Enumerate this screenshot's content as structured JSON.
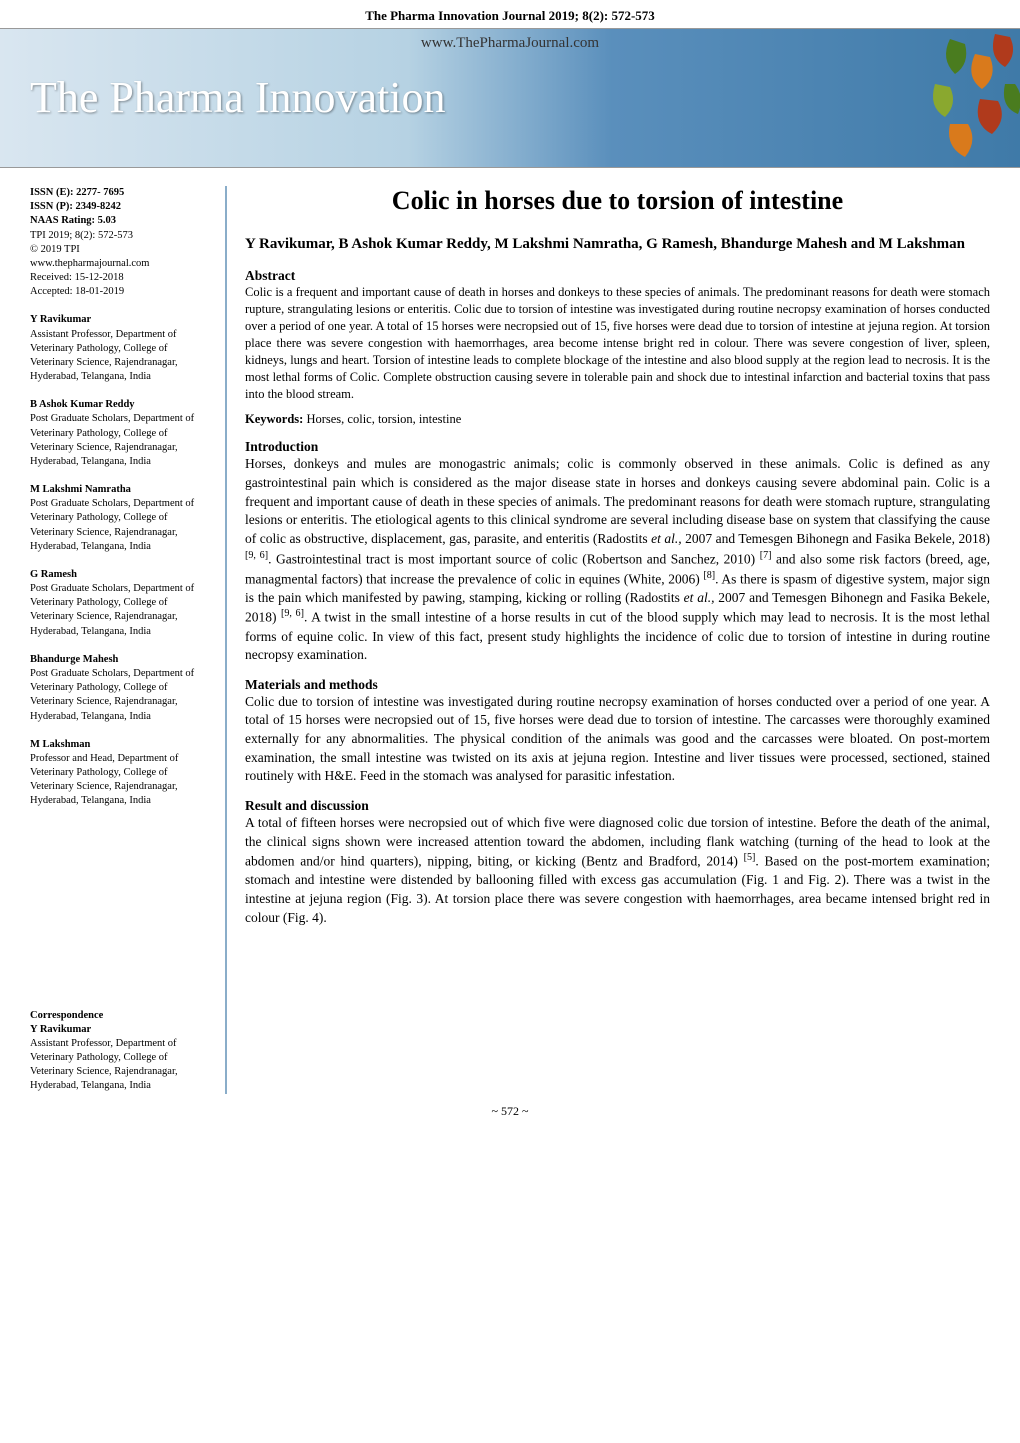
{
  "colors": {
    "banner_gradient_start": "#d9e6f0",
    "banner_gradient_mid1": "#b6d2e3",
    "banner_gradient_mid2": "#5a8fbc",
    "banner_gradient_end": "#3f7aa8",
    "banner_title_color": "#ffffff",
    "sidebar_border": "#8aadc9",
    "text_color": "#000000",
    "leaf_green": "#4a7c1f",
    "leaf_red": "#b03a1c",
    "leaf_orange": "#d97a1c"
  },
  "typography": {
    "body_font": "Times New Roman",
    "banner_font": "Georgia",
    "title_fontsize": 26,
    "authors_fontsize": 15,
    "section_heading_fontsize": 13.5,
    "body_fontsize": 13.5,
    "abstract_fontsize": 12.5,
    "sidebar_fontsize": 10.5,
    "banner_title_fontsize": 44
  },
  "header": {
    "journal_line": "The Pharma Innovation Journal 2019; 8(2): 572-573",
    "url": "www.ThePharmaJournal.com",
    "banner_title": "The Pharma Innovation"
  },
  "sidebar": {
    "meta": {
      "issn_e": "ISSN (E): 2277- 7695",
      "issn_p": "ISSN (P): 2349-8242",
      "naas": "NAAS Rating: 5.03",
      "tpi": "TPI 2019; 8(2): 572-573",
      "copyright": "© 2019 TPI",
      "website": "www.thepharmajournal.com",
      "received": "Received: 15-12-2018",
      "accepted": "Accepted: 18-01-2019"
    },
    "authors": [
      {
        "name": "Y Ravikumar",
        "affiliation": "Assistant Professor, Department of Veterinary Pathology, College of Veterinary Science, Rajendranagar, Hyderabad, Telangana, India"
      },
      {
        "name": "B Ashok Kumar Reddy",
        "affiliation": "Post Graduate Scholars, Department of Veterinary Pathology, College of Veterinary Science, Rajendranagar, Hyderabad, Telangana, India"
      },
      {
        "name": "M Lakshmi Namratha",
        "affiliation": "Post Graduate Scholars, Department of Veterinary Pathology, College of Veterinary Science, Rajendranagar, Hyderabad, Telangana, India"
      },
      {
        "name": "G Ramesh",
        "affiliation": "Post Graduate Scholars, Department of Veterinary Pathology, College of Veterinary Science, Rajendranagar, Hyderabad, Telangana, India"
      },
      {
        "name": "Bhandurge Mahesh",
        "affiliation": "Post Graduate Scholars, Department of Veterinary Pathology, College of Veterinary Science, Rajendranagar, Hyderabad, Telangana, India"
      },
      {
        "name": "M Lakshman",
        "affiliation": "Professor and Head, Department of Veterinary Pathology, College of Veterinary Science, Rajendranagar, Hyderabad, Telangana, India"
      }
    ],
    "correspondence": {
      "heading": "Correspondence",
      "name": "Y Ravikumar",
      "affiliation": "Assistant Professor, Department of Veterinary Pathology, College of Veterinary Science, Rajendranagar, Hyderabad, Telangana, India"
    }
  },
  "article": {
    "title": "Colic in horses due to torsion of intestine",
    "authors_line": "Y Ravikumar, B Ashok Kumar Reddy, M Lakshmi Namratha, G Ramesh, Bhandurge Mahesh and M Lakshman",
    "abstract_heading": "Abstract",
    "abstract": "Colic is a frequent and important cause of death in horses and donkeys to these species of animals. The predominant reasons for death were stomach rupture, strangulating lesions or enteritis. Colic due to torsion of intestine was investigated during routine necropsy examination of horses conducted over a period of one year. A total of 15 horses were necropsied out of 15, five horses were dead due to torsion of intestine at jejuna region. At torsion place there was severe congestion with haemorrhages, area become intense bright red in colour. There was severe congestion of liver, spleen, kidneys, lungs and heart. Torsion of intestine leads to complete blockage of the intestine and also blood supply at the region lead to necrosis. It is the most lethal forms of Colic. Complete obstruction causing severe in tolerable pain and shock due to intestinal infarction and bacterial toxins that pass into the blood stream.",
    "keywords_label": "Keywords:",
    "keywords": "Horses, colic, torsion, intestine",
    "sections": [
      {
        "heading": "Introduction",
        "text": "Horses, donkeys and mules are monogastric animals; colic is commonly observed in these animals. Colic is defined as any gastrointestinal pain which is considered as the major disease state in horses and donkeys causing severe abdominal pain. Colic is a frequent and important cause of death in these species of animals. The predominant reasons for death were stomach rupture, strangulating lesions or enteritis. The etiological agents to this clinical syndrome are several including disease base on system that classifying the cause of colic as obstructive, displacement, gas, parasite, and enteritis (Radostits et al., 2007 and Temesgen Bihonegn and Fasika Bekele, 2018) [9, 6]. Gastrointestinal tract is most important source of colic (Robertson and Sanchez, 2010) [7] and also some risk factors (breed, age, managmental factors) that increase the prevalence of colic in equines (White, 2006) [8]. As there is spasm of digestive system, major sign is the pain which manifested by pawing, stamping, kicking or rolling (Radostits et al., 2007 and Temesgen Bihonegn and Fasika Bekele, 2018) [9, 6]. A twist in the small intestine of a horse results in cut of the blood supply which may lead to necrosis. It is the most lethal forms of equine colic. In view of this fact, present study highlights the incidence of colic due to torsion of intestine in during routine necropsy examination."
      },
      {
        "heading": "Materials and methods",
        "text": "Colic due to torsion of intestine was investigated during routine necropsy examination of horses conducted over a period of one year. A total of 15 horses were necropsied out of 15, five horses were dead due to torsion of intestine. The carcasses were thoroughly examined externally for any abnormalities. The physical condition of the animals was good and the carcasses were bloated. On post-mortem examination, the small intestine was twisted on its axis at jejuna region. Intestine and liver tissues were processed, sectioned, stained routinely with H&E. Feed in the stomach was analysed for parasitic infestation."
      },
      {
        "heading": "Result and discussion",
        "text": "A total of fifteen horses were necropsied out of which five were diagnosed colic due torsion of intestine. Before the death of the animal, the clinical signs shown were increased attention toward the abdomen, including flank watching (turning of the head to look at the abdomen and/or hind quarters), nipping, biting, or kicking (Bentz and Bradford, 2014) [5]. Based on the post-mortem examination; stomach and intestine were distended by ballooning filled with excess gas accumulation (Fig. 1 and Fig. 2). There was a twist in the intestine at jejuna region (Fig. 3). At torsion place there was severe congestion with haemorrhages, area became intensed bright red in colour (Fig. 4)."
      }
    ]
  },
  "page_number": "~ 572 ~"
}
